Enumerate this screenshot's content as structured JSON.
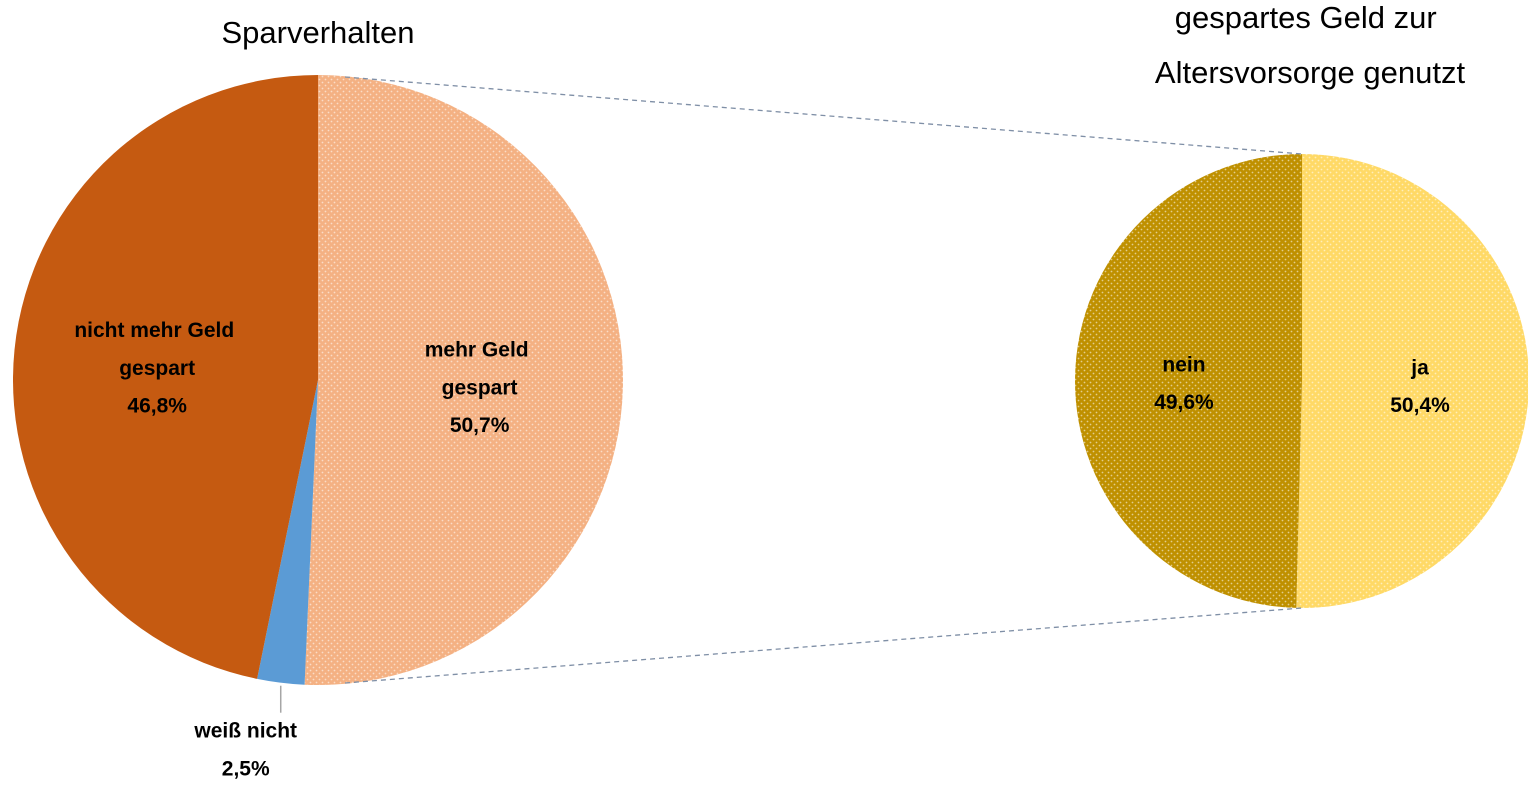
{
  "chart_data": [
    {
      "type": "pie",
      "title": "Sparverhalten",
      "categories": [
        "mehr Geld gespart",
        "weiß nicht",
        "nicht mehr Geld gespart"
      ],
      "values": [
        50.7,
        2.5,
        46.8
      ],
      "value_labels": [
        "50,7%",
        "2,5%",
        "46,8%"
      ],
      "colors": [
        "#f4b183",
        "#5b9bd5",
        "#c55a11"
      ],
      "patterned": [
        true,
        false,
        false
      ]
    },
    {
      "type": "pie",
      "title": "gespartes Geld zur Altersvorsorge genutzt",
      "categories": [
        "ja",
        "nein"
      ],
      "values": [
        50.4,
        49.6
      ],
      "value_labels": [
        "50,4%",
        "49,6%"
      ],
      "colors": [
        "#ffd966",
        "#bf9000"
      ],
      "patterned": [
        true,
        true
      ]
    }
  ]
}
